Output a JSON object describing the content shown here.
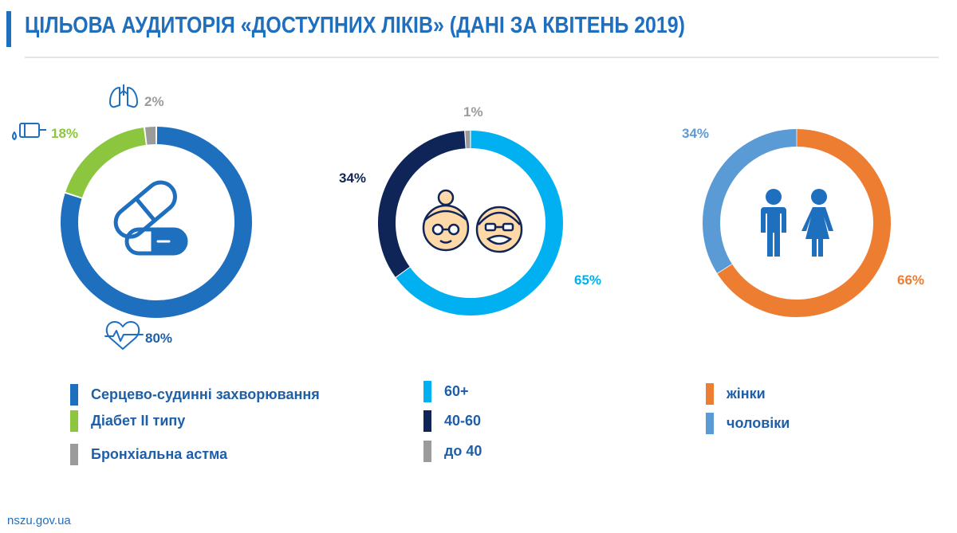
{
  "header": {
    "title": "ЦІЛЬОВА АУДИТОРІЯ «ДОСТУПНИХ ЛІКІВ» (ДАНІ ЗА КВІТЕНЬ 2019)"
  },
  "footer": {
    "url": "nszu.gov.ua"
  },
  "chart_data": [
    {
      "type": "pie",
      "variant": "donut",
      "center_icon": "pills-icon",
      "categories": [
        "Серцево-судинні захворювання",
        "Діабет ІІ типу",
        "Бронхіальна астма"
      ],
      "values": [
        80,
        18,
        2
      ],
      "labels": [
        "80%",
        "18%",
        "2%"
      ],
      "label_icons": [
        "heart-pulse-icon",
        "insulin-pen-icon",
        "lungs-icon"
      ],
      "colors": [
        "#1f6fbf",
        "#8cc63f",
        "#9b9b9b"
      ],
      "legend_placement": "bottom"
    },
    {
      "type": "pie",
      "variant": "donut",
      "center_icon": "elderly-couple-icon",
      "categories": [
        "60+",
        "40-60",
        "до 40"
      ],
      "values": [
        65,
        34,
        1
      ],
      "labels": [
        "65%",
        "34%",
        "1%"
      ],
      "colors": [
        "#00b0f0",
        "#0f2557",
        "#9b9b9b"
      ],
      "legend_placement": "bottom"
    },
    {
      "type": "pie",
      "variant": "donut",
      "center_icon": "man-woman-icon",
      "categories": [
        "жінки",
        "чоловіки"
      ],
      "values": [
        66,
        34
      ],
      "labels": [
        "66%",
        "34%"
      ],
      "colors": [
        "#ed7d31",
        "#5b9bd5"
      ],
      "legend_placement": "bottom"
    }
  ]
}
